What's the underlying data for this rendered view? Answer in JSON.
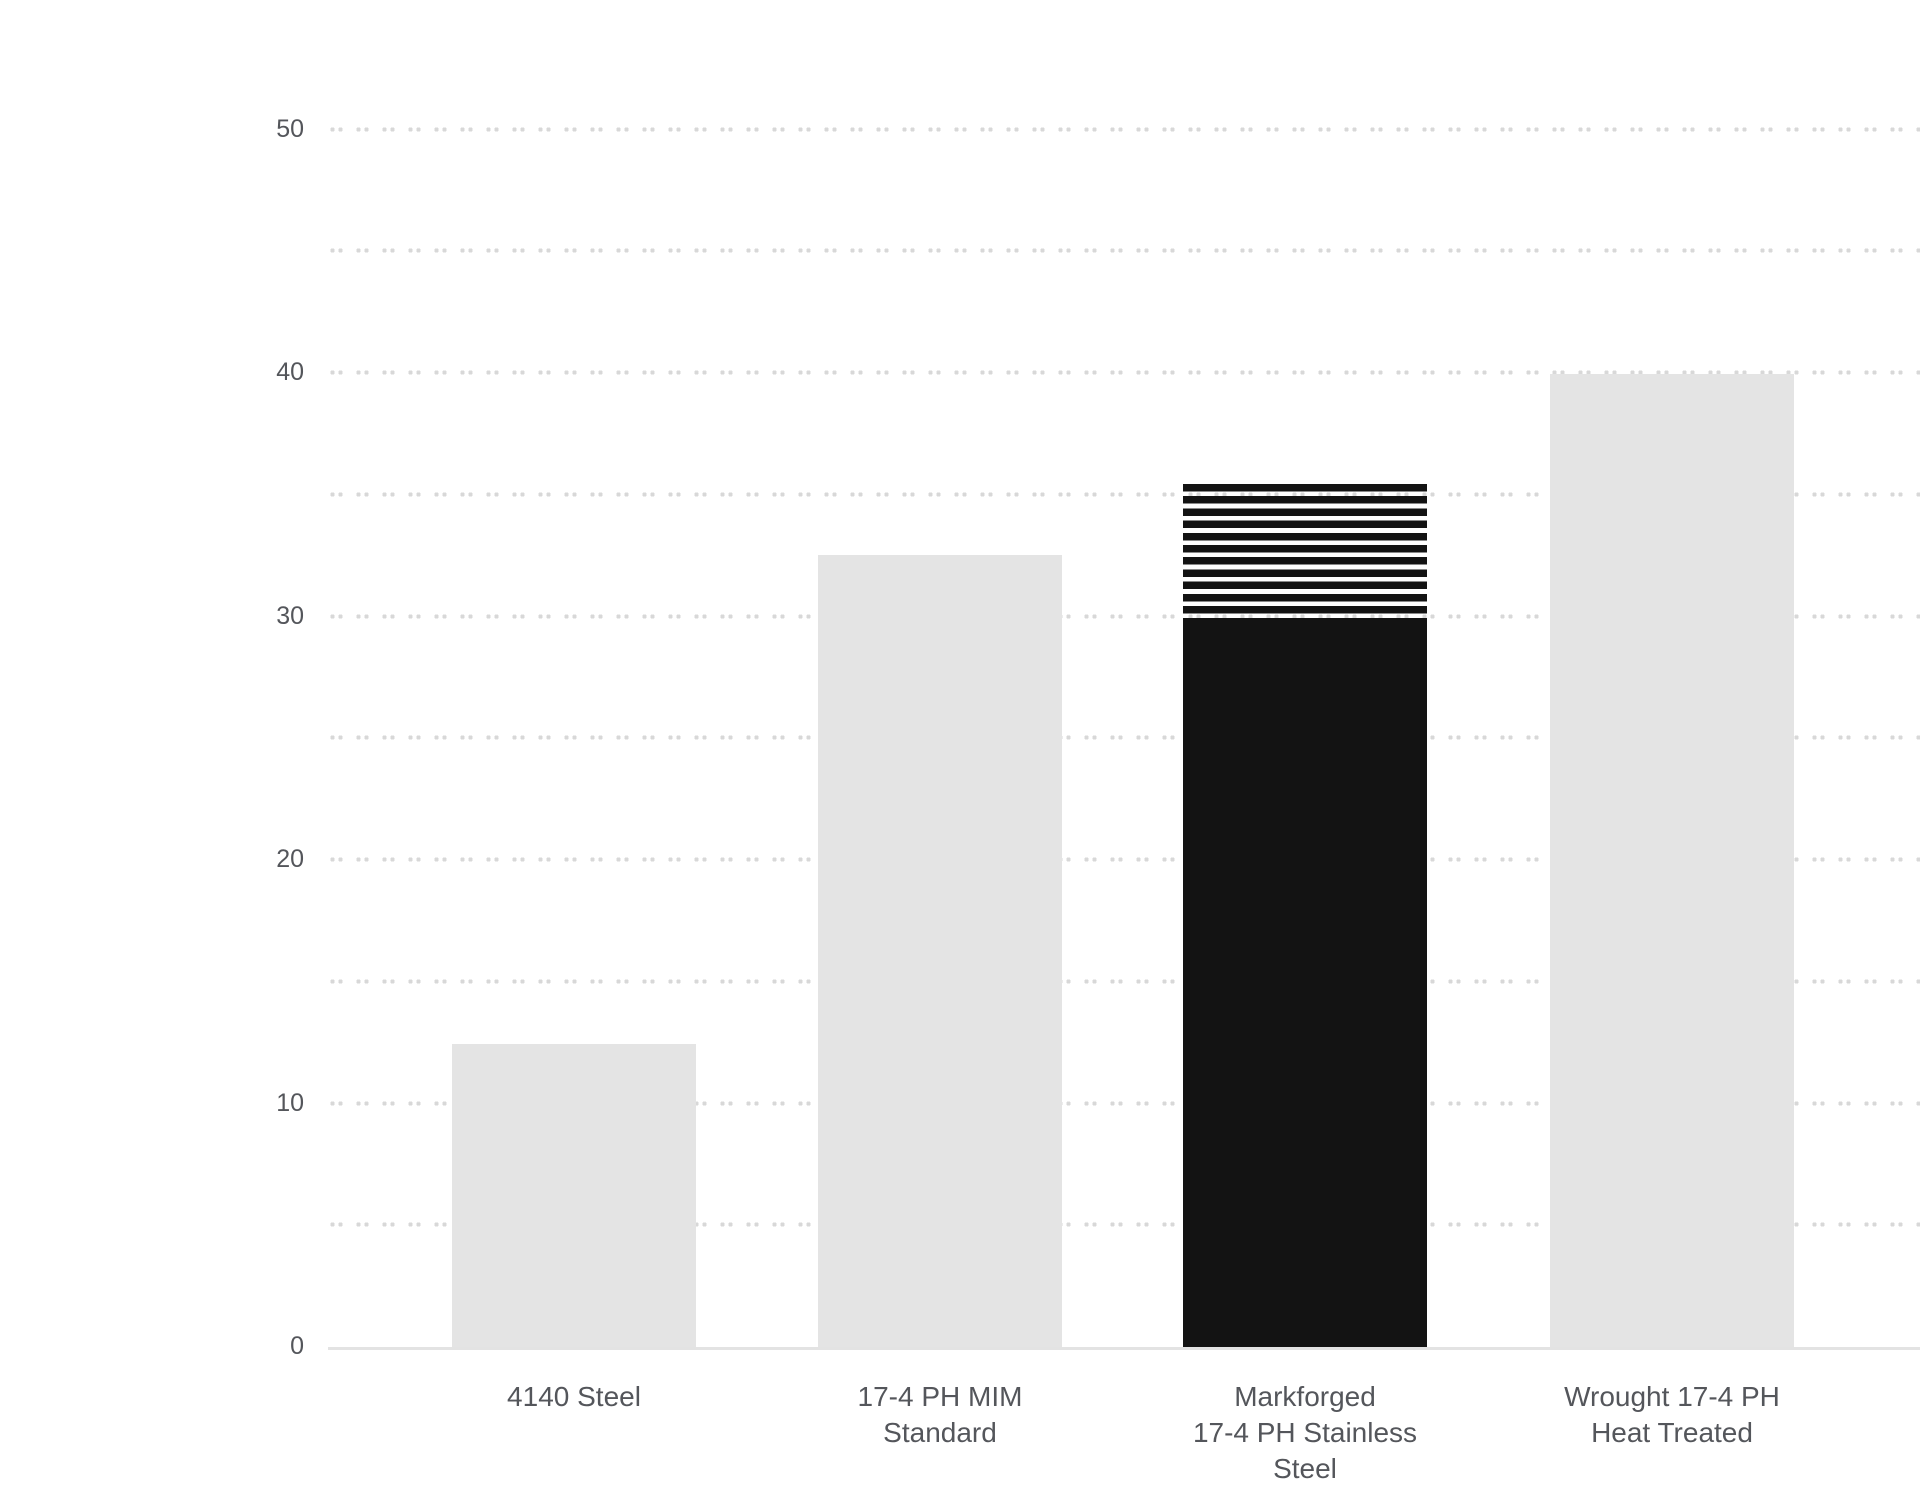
{
  "chart_data": {
    "type": "bar",
    "title": "",
    "xlabel": "",
    "ylabel": "",
    "legend": "none",
    "grid": "dotted horizontal lines every 5 units, solid baseline at 0",
    "categories": [
      "4140 Steel",
      "17-4 PH MIM Standard",
      "Markforged 17-4 PH Stainless Steel",
      "Wrought 17-4 PH Heat Treated"
    ],
    "values": [
      12.4,
      32.5,
      35.4,
      39.9
    ],
    "bars": [
      {
        "label_lines": [
          "4140 Steel"
        ],
        "value": 12.4,
        "fill": "gray"
      },
      {
        "label_lines": [
          "17-4 PH MIM",
          "Standard"
        ],
        "value": 32.5,
        "fill": "gray"
      },
      {
        "label_lines": [
          "Markforged",
          "17-4 PH Stainless",
          "Steel"
        ],
        "value": 35.4,
        "solid_value": 29.9,
        "striped_from": 29.9,
        "striped_to": 35.4,
        "fill": "black-with-striped-top"
      },
      {
        "label_lines": [
          "Wrought 17-4 PH",
          "Heat Treated"
        ],
        "value": 39.9,
        "fill": "gray"
      }
    ],
    "y_axis": {
      "min": 0,
      "max": 50,
      "tick_labels": [
        "0",
        "10",
        "20",
        "30",
        "40",
        "50"
      ],
      "tick_step": 10,
      "gridline_step": 5
    },
    "colors": {
      "background": "#ffffff",
      "bar_gray": "#e4e4e4",
      "bar_black": "#131313",
      "gridline_dot": "#d8d8d8",
      "axis_line": "#e3e3e3",
      "label_text": "#54565b"
    }
  }
}
